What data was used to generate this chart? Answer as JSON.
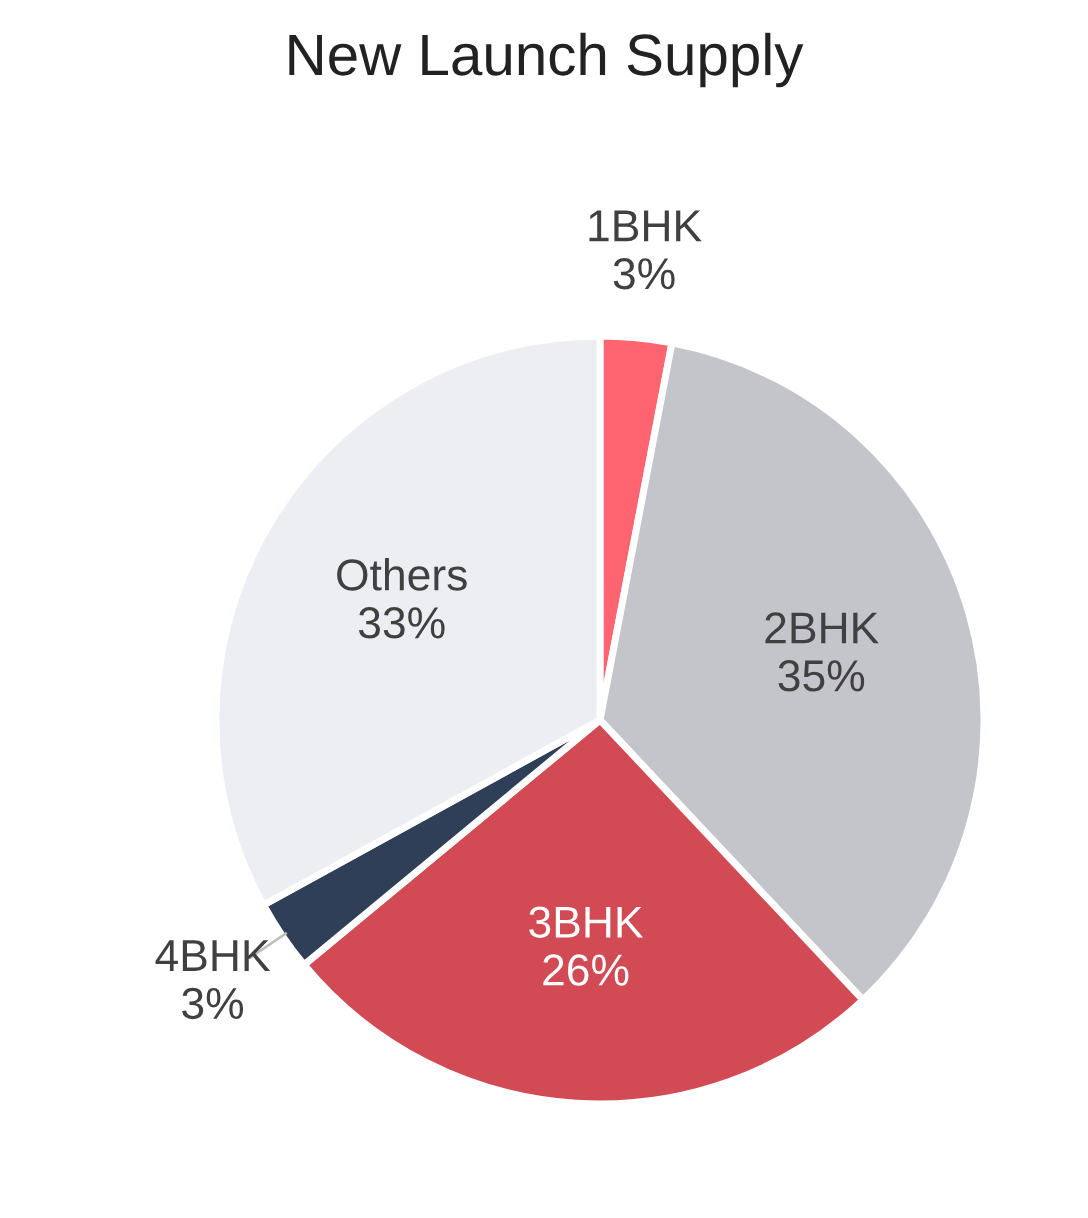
{
  "chart_data": {
    "type": "pie",
    "title": "New Launch Supply",
    "categories": [
      "1BHK",
      "2BHK",
      "3BHK",
      "4BHK",
      "Others"
    ],
    "values": [
      3,
      35,
      26,
      3,
      33
    ],
    "colors": [
      "#ff6570",
      "#c4c4cb",
      "#d14a54",
      "#2f3f57",
      "#eceef2"
    ],
    "value_labels": [
      "3%",
      "35%",
      "26%",
      "3%",
      "33%"
    ],
    "legend": false
  }
}
